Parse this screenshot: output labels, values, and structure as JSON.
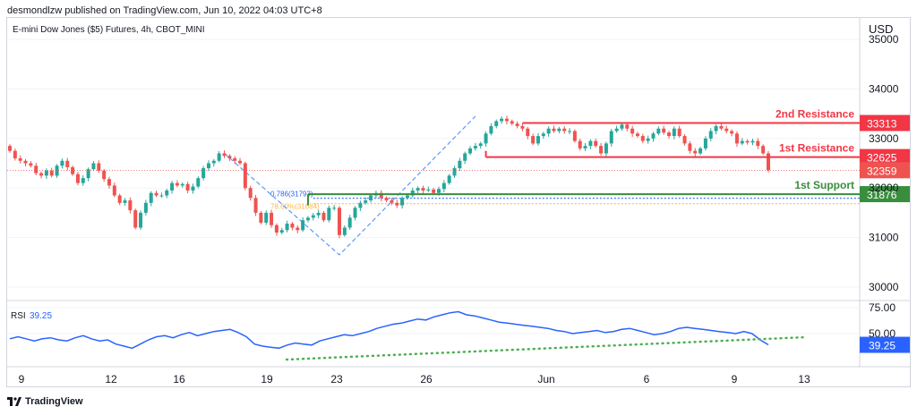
{
  "header": {
    "published": "desmondlzw published on TradingView.com, Jun 10, 2022 04:03 UTC+8"
  },
  "footer": {
    "brand": "TradingView"
  },
  "colors": {
    "up": "#26a69a",
    "down": "#ef5350",
    "resistance": "#f23645",
    "support": "#388e3c",
    "rsi": "#2962ff",
    "trend": "#4caf50",
    "fib_blue": "#2962ff",
    "fib_orange": "#ffb74d",
    "fib_line": "#5b9cf6",
    "grid": "#f0f3fa",
    "axis_text": "#131722"
  },
  "chart_data": [
    {
      "type": "candlestick",
      "title": "E-mini Dow Jones ($5) Futures, 4h, CBOT_MINI",
      "currency": "USD",
      "y_ticks": [
        30000,
        31000,
        32000,
        33000,
        34000,
        35000
      ],
      "ylim": [
        29800,
        35400
      ],
      "x_ticks": [
        "9",
        "12",
        "16",
        "19",
        "23",
        "26",
        "Jun",
        "6",
        "9",
        "13"
      ],
      "close_series": [
        32750,
        32600,
        32550,
        32500,
        32450,
        32300,
        32250,
        32350,
        32250,
        32450,
        32550,
        32420,
        32280,
        32100,
        32200,
        32380,
        32500,
        32350,
        32180,
        32050,
        31850,
        31700,
        31750,
        31550,
        31200,
        31500,
        31700,
        31900,
        31850,
        31850,
        31950,
        32100,
        32050,
        32080,
        31950,
        32030,
        32200,
        32400,
        32500,
        32550,
        32700,
        32650,
        32600,
        32550,
        32500,
        32000,
        31800,
        31500,
        31300,
        31500,
        31250,
        31100,
        31150,
        31280,
        31200,
        31150,
        31350,
        31400,
        31450,
        31500,
        31350,
        31600,
        31600,
        31050,
        31200,
        31400,
        31600,
        31700,
        31750,
        31850,
        31900,
        31800,
        31750,
        31700,
        31650,
        31800,
        31850,
        31950,
        32000,
        31950,
        31970,
        31900,
        31980,
        32100,
        32250,
        32400,
        32550,
        32700,
        32800,
        32850,
        32900,
        33100,
        33250,
        33350,
        33400,
        33350,
        33300,
        33250,
        33200,
        33050,
        32900,
        33050,
        33100,
        33200,
        33150,
        33200,
        33150,
        33150,
        32950,
        32800,
        32850,
        32950,
        32850,
        32700,
        32900,
        33150,
        33200,
        33280,
        33200,
        33100,
        33050,
        32950,
        33000,
        33100,
        33200,
        33120,
        33050,
        33200,
        33050,
        32900,
        32750,
        32700,
        32800,
        33000,
        33150,
        33250,
        33200,
        33150,
        33100,
        32900,
        32950,
        32920,
        32950,
        32850,
        32700,
        32359
      ],
      "price_levels": [
        {
          "label": "2nd Resistance",
          "value": "33313",
          "price": 33313
        },
        {
          "label": "1st Resistance",
          "value": "32625",
          "price": 32625
        },
        {
          "label": "1st Support",
          "value": "31876",
          "price": 31876
        }
      ],
      "last_price": {
        "value": "32359",
        "price": 32359
      },
      "fibonacci": [
        {
          "label": "0.786(31793)",
          "price": 31793
        },
        {
          "label": "78.60%(31684)",
          "price": 31684
        }
      ]
    },
    {
      "type": "line",
      "title": "RSI",
      "last_value_label": "39.25",
      "y_ticks": [
        50,
        75
      ],
      "y_tick_labels": [
        "50.00",
        "75.00"
      ],
      "ylim": [
        20,
        80
      ],
      "values": [
        45,
        47,
        45,
        43,
        45,
        46,
        44,
        43,
        46,
        48,
        45,
        43,
        44,
        40,
        38,
        36,
        40,
        44,
        47,
        48,
        46,
        49,
        51,
        48,
        50,
        52,
        53,
        54,
        51,
        47,
        40,
        38,
        37,
        36,
        39,
        41,
        40,
        39,
        43,
        45,
        47,
        49,
        48,
        50,
        52,
        55,
        57,
        59,
        60,
        62,
        64,
        63,
        66,
        68,
        70,
        71,
        68,
        67,
        65,
        63,
        61,
        60,
        59,
        58,
        57,
        56,
        55,
        53,
        52,
        50,
        51,
        52,
        53,
        51,
        52,
        54,
        55,
        53,
        51,
        49,
        50,
        52,
        55,
        56,
        55,
        54,
        53,
        52,
        51,
        50,
        52,
        50,
        44,
        39.25
      ]
    }
  ]
}
